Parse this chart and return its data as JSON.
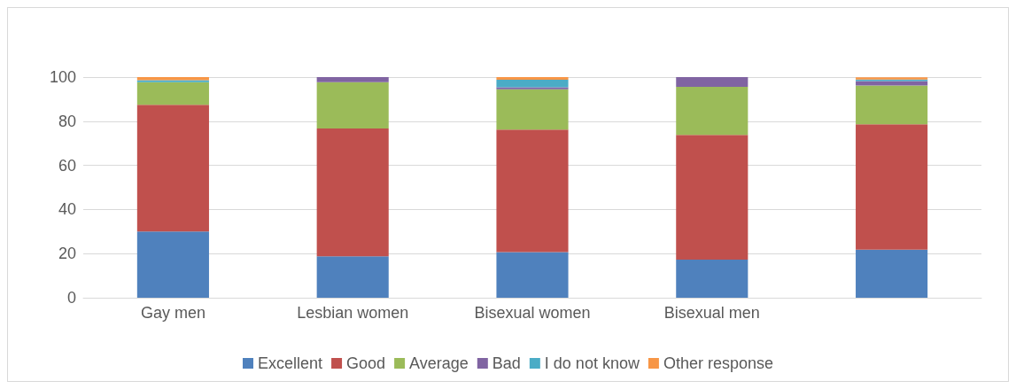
{
  "chart_data": {
    "type": "bar",
    "stacked": true,
    "categories": [
      "Gay men",
      "Lesbian women",
      "Bisexual women",
      "Bisexual men",
      null
    ],
    "series": [
      {
        "name": "Excellent",
        "color": "#4f81bd",
        "values": [
          30,
          18.8,
          20.7,
          17.3,
          21.8
        ]
      },
      {
        "name": "Good",
        "color": "#c0504d",
        "values": [
          57.4,
          57.9,
          55.5,
          56.5,
          56.8
        ]
      },
      {
        "name": "Average",
        "color": "#9bbb59",
        "values": [
          10.3,
          21,
          18.3,
          21.8,
          17.6
        ]
      },
      {
        "name": "Bad",
        "color": "#8064a2",
        "values": [
          0,
          2.3,
          0.9,
          4.4,
          2
        ]
      },
      {
        "name": "I do not know",
        "color": "#4bacc6",
        "values": [
          0.9,
          0,
          3.4,
          0,
          0.7
        ]
      },
      {
        "name": "Other response",
        "color": "#f79646",
        "values": [
          1.4,
          0,
          1.2,
          0,
          1
        ]
      }
    ],
    "ylim": [
      0,
      100
    ],
    "yticks": [
      0,
      20,
      40,
      60,
      80,
      100
    ],
    "grid": "y",
    "legend": "bottom"
  }
}
